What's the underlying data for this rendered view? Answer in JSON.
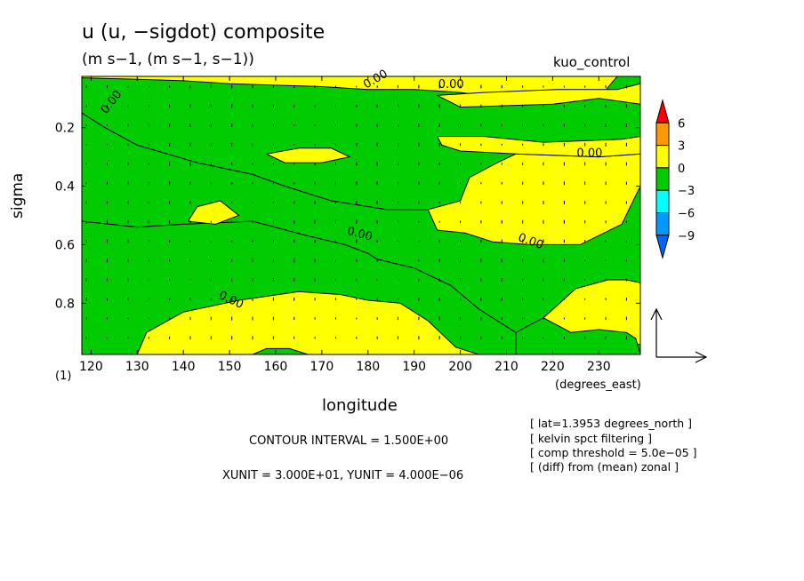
{
  "chart_data": {
    "type": "contour",
    "title": "u (u, −sigdot) composite",
    "subtitle": "(m s−1, (m s−1, s−1))",
    "run_name": "kuo_control",
    "xlabel": "longitude",
    "x_units": "(degrees_east)",
    "ylabel": "sigma",
    "y_units": "(1)",
    "xlim": [
      118,
      239
    ],
    "ylim": [
      0.975,
      0.025
    ],
    "x_ticks": [
      120,
      130,
      140,
      150,
      160,
      170,
      180,
      190,
      200,
      210,
      220,
      230
    ],
    "x_tick_labels": [
      "120",
      "130",
      "140",
      "150",
      "160",
      "170",
      "180",
      "190",
      "200",
      "210",
      "220",
      "230"
    ],
    "y_ticks": [
      0.2,
      0.4,
      0.6,
      0.8
    ],
    "y_tick_labels": [
      "0.2",
      "0.4",
      "0.6",
      "0.8"
    ],
    "contour_levels": [
      -9,
      -6,
      -3,
      0,
      3,
      6
    ],
    "contour_label": "0.00",
    "colorbar": {
      "labels": [
        "6",
        "3",
        "0",
        "−3",
        "−6",
        "−9"
      ],
      "colors": [
        "#ff0000",
        "#ff9900",
        "#ffff00",
        "#00cc00",
        "#00ffff",
        "#0099ff",
        "#0066ff"
      ]
    },
    "positive_color": "#ffff00",
    "negative_color": "#00cc00",
    "contour_interval": "CONTOUR INTERVAL = 1.500E+00",
    "vector_units": "XUNIT = 3.000E+01, YUNIT = 4.000E−06",
    "notes": [
      "[ lat=1.3953 degrees_north ]",
      "[ kelvin spct filtering ]",
      "[ comp threshold = 5.0e−05 ]",
      "[ (diff) from (mean) zonal ]"
    ],
    "negative_regions": [
      [
        [
          118,
          0.15
        ],
        [
          123,
          0.2
        ],
        [
          130,
          0.26
        ],
        [
          143,
          0.32
        ],
        [
          155,
          0.36
        ],
        [
          162,
          0.4
        ],
        [
          172,
          0.45
        ],
        [
          184,
          0.48
        ],
        [
          193,
          0.48
        ],
        [
          200,
          0.45
        ],
        [
          202,
          0.37
        ],
        [
          208,
          0.32
        ],
        [
          212,
          0.29
        ],
        [
          230,
          0.3
        ],
        [
          239,
          0.29
        ],
        [
          239,
          0.025
        ],
        [
          234,
          0.025
        ],
        [
          230,
          0.1
        ],
        [
          220,
          0.12
        ],
        [
          200,
          0.08
        ],
        [
          190,
          0.07
        ],
        [
          180,
          0.07
        ],
        [
          170,
          0.06
        ],
        [
          150,
          0.05
        ],
        [
          140,
          0.04
        ],
        [
          130,
          0.035
        ],
        [
          118,
          0.03
        ]
      ],
      [
        [
          118,
          0.52
        ],
        [
          130,
          0.54
        ],
        [
          140,
          0.53
        ],
        [
          155,
          0.52
        ],
        [
          167,
          0.57
        ],
        [
          175,
          0.6
        ],
        [
          180,
          0.63
        ],
        [
          182,
          0.65
        ],
        [
          190,
          0.68
        ],
        [
          198,
          0.74
        ],
        [
          204,
          0.82
        ],
        [
          212,
          0.9
        ],
        [
          218,
          0.85
        ],
        [
          225,
          0.75
        ],
        [
          232,
          0.72
        ],
        [
          236,
          0.72
        ],
        [
          239,
          0.73
        ],
        [
          239,
          0.4
        ],
        [
          235,
          0.53
        ],
        [
          226,
          0.6
        ],
        [
          215,
          0.6
        ],
        [
          207,
          0.59
        ],
        [
          201,
          0.56
        ],
        [
          195,
          0.55
        ],
        [
          193,
          0.48
        ],
        [
          184,
          0.48
        ],
        [
          172,
          0.45
        ],
        [
          162,
          0.4
        ],
        [
          155,
          0.36
        ],
        [
          143,
          0.32
        ],
        [
          130,
          0.26
        ],
        [
          123,
          0.2
        ],
        [
          118,
          0.15
        ]
      ],
      [
        [
          118,
          0.52
        ],
        [
          118,
          0.975
        ],
        [
          130,
          0.975
        ],
        [
          132,
          0.9
        ],
        [
          140,
          0.83
        ],
        [
          152,
          0.79
        ],
        [
          165,
          0.76
        ],
        [
          174,
          0.77
        ],
        [
          180,
          0.79
        ],
        [
          187,
          0.8
        ],
        [
          193,
          0.86
        ],
        [
          199,
          0.95
        ],
        [
          204,
          0.975
        ],
        [
          212,
          0.975
        ],
        [
          212,
          0.9
        ],
        [
          204,
          0.82
        ],
        [
          198,
          0.74
        ],
        [
          190,
          0.68
        ],
        [
          182,
          0.65
        ],
        [
          180,
          0.63
        ],
        [
          175,
          0.6
        ],
        [
          167,
          0.57
        ],
        [
          155,
          0.52
        ],
        [
          140,
          0.53
        ],
        [
          130,
          0.54
        ]
      ],
      [
        [
          239,
          0.94
        ],
        [
          233,
          0.95
        ],
        [
          236,
          0.975
        ],
        [
          239,
          0.975
        ]
      ],
      [
        [
          212,
          0.9
        ],
        [
          212,
          0.975
        ],
        [
          239,
          0.975
        ],
        [
          238,
          0.92
        ],
        [
          236,
          0.9
        ],
        [
          230,
          0.89
        ],
        [
          224,
          0.9
        ],
        [
          218,
          0.85
        ]
      ],
      [
        [
          155,
          0.975
        ],
        [
          158,
          0.955
        ],
        [
          163,
          0.955
        ],
        [
          167,
          0.975
        ]
      ]
    ],
    "positive_regions": [
      [
        [
          158,
          0.29
        ],
        [
          165,
          0.27
        ],
        [
          172,
          0.27
        ],
        [
          176,
          0.3
        ],
        [
          170,
          0.32
        ],
        [
          162,
          0.32
        ]
      ],
      [
        [
          143,
          0.47
        ],
        [
          148,
          0.45
        ],
        [
          152,
          0.5
        ],
        [
          147,
          0.53
        ],
        [
          141,
          0.52
        ]
      ],
      [
        [
          195,
          0.23
        ],
        [
          205,
          0.23
        ],
        [
          218,
          0.25
        ],
        [
          235,
          0.24
        ],
        [
          239,
          0.23
        ],
        [
          239,
          0.29
        ],
        [
          230,
          0.3
        ],
        [
          212,
          0.29
        ],
        [
          200,
          0.28
        ],
        [
          196,
          0.26
        ]
      ],
      [
        [
          195,
          0.09
        ],
        [
          205,
          0.08
        ],
        [
          221,
          0.07
        ],
        [
          234,
          0.07
        ],
        [
          239,
          0.05
        ],
        [
          239,
          0.12
        ],
        [
          230,
          0.1
        ],
        [
          220,
          0.12
        ],
        [
          200,
          0.13
        ]
      ]
    ],
    "contour_labels": [
      {
        "text": "0.00",
        "x": 125,
        "y": 0.12,
        "angle": -52
      },
      {
        "text": "0.00",
        "x": 182,
        "y": 0.045,
        "angle": -30
      },
      {
        "text": "0.00",
        "x": 198,
        "y": 0.065,
        "angle": 0
      },
      {
        "text": "0.00",
        "x": 228,
        "y": 0.3,
        "angle": 0
      },
      {
        "text": "0.00",
        "x": 178,
        "y": 0.575,
        "angle": 15
      },
      {
        "text": "0.00",
        "x": 215,
        "y": 0.6,
        "angle": 20
      },
      {
        "text": "0.00",
        "x": 150,
        "y": 0.8,
        "angle": 25
      }
    ]
  }
}
